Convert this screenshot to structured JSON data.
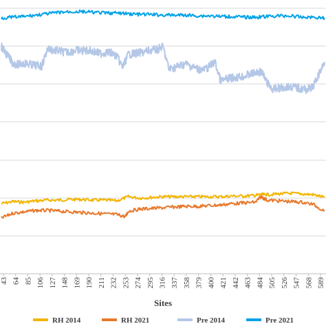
{
  "chart_data": {
    "type": "line",
    "title": "",
    "xlabel": "Sites",
    "ylabel": "",
    "x_tick_labels": [
      "43",
      "64",
      "85",
      "106",
      "127",
      "148",
      "169",
      "190",
      "211",
      "232",
      "253",
      "274",
      "295",
      "316",
      "337",
      "358",
      "379",
      "400",
      "421",
      "442",
      "463",
      "484",
      "505",
      "526",
      "547",
      "568",
      "589"
    ],
    "xlim": [
      40,
      600
    ],
    "grid": true,
    "legend_position": "bottom",
    "series": [
      {
        "name": "RH 2014",
        "color": "#f2b500",
        "x": [
          40,
          60,
          80,
          100,
          120,
          140,
          160,
          180,
          200,
          220,
          240,
          260,
          280,
          300,
          320,
          340,
          360,
          380,
          400,
          420,
          440,
          460,
          480,
          490,
          500,
          520,
          540,
          560,
          580,
          600
        ],
        "values": [
          296,
          293,
          294,
          292,
          291,
          291,
          290,
          290,
          291,
          291,
          292,
          286,
          288,
          287,
          286,
          286,
          286,
          286,
          286,
          286,
          285,
          285,
          284,
          283,
          283,
          282,
          281,
          282,
          283,
          287
        ]
      },
      {
        "name": "RH 2021",
        "color": "#e8782b",
        "x": [
          40,
          60,
          80,
          100,
          120,
          140,
          160,
          180,
          200,
          220,
          240,
          255,
          260,
          280,
          300,
          320,
          340,
          360,
          380,
          400,
          420,
          440,
          460,
          480,
          490,
          500,
          520,
          540,
          560,
          580,
          600
        ],
        "values": [
          317,
          310,
          308,
          306,
          306,
          307,
          308,
          309,
          310,
          311,
          312,
          315,
          307,
          304,
          303,
          302,
          301,
          300,
          300,
          299,
          298,
          296,
          295,
          294,
          286,
          291,
          292,
          293,
          294,
          297,
          307
        ]
      },
      {
        "name": "Pre 2014",
        "color": "#b4c7e7",
        "x": [
          40,
          50,
          60,
          70,
          80,
          90,
          100,
          110,
          120,
          130,
          140,
          150,
          160,
          170,
          180,
          190,
          200,
          210,
          220,
          230,
          240,
          250,
          260,
          270,
          280,
          290,
          300,
          310,
          320,
          330,
          340,
          350,
          360,
          370,
          380,
          390,
          400,
          410,
          420,
          430,
          440,
          450,
          460,
          470,
          480,
          490,
          500,
          510,
          520,
          530,
          540,
          550,
          560,
          570,
          580,
          590,
          600
        ],
        "values": [
          68,
          80,
          92,
          94,
          92,
          94,
          95,
          96,
          71,
          73,
          74,
          76,
          75,
          73,
          74,
          73,
          75,
          78,
          76,
          77,
          82,
          98,
          79,
          78,
          77,
          75,
          73,
          72,
          68,
          100,
          98,
          95,
          93,
          97,
          100,
          102,
          97,
          90,
          118,
          115,
          113,
          112,
          111,
          108,
          106,
          104,
          120,
          130,
          128,
          127,
          126,
          127,
          129,
          130,
          126,
          108,
          90
        ]
      },
      {
        "name": "Pre 2021",
        "color": "#00a2e8",
        "x": [
          40,
          60,
          80,
          100,
          120,
          140,
          160,
          180,
          200,
          220,
          240,
          260,
          280,
          300,
          320,
          340,
          360,
          380,
          400,
          420,
          440,
          460,
          480,
          500,
          520,
          540,
          560,
          580,
          600
        ],
        "values": [
          26,
          25,
          24,
          22,
          20,
          18,
          17,
          17,
          18,
          19,
          19,
          20,
          21,
          21,
          22,
          22,
          22,
          23,
          23,
          24,
          24,
          25,
          25,
          24,
          23,
          23,
          25,
          25,
          26
        ]
      }
    ]
  }
}
